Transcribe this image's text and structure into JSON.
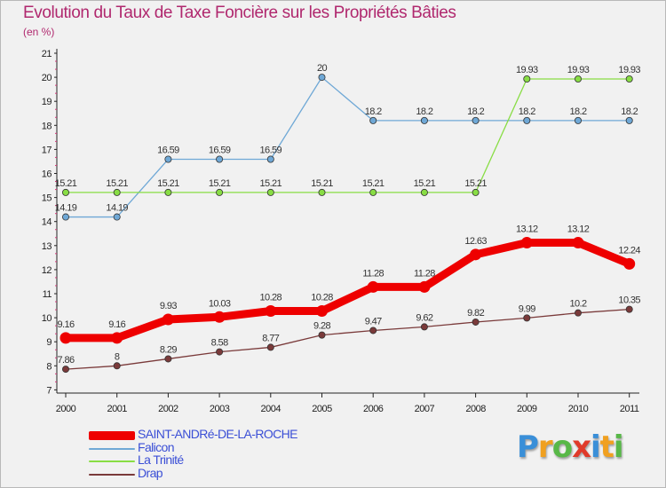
{
  "title": "Evolution du Taux de Taxe Foncière sur les Propriétés Bâties",
  "subtitle": "(en %)",
  "logo": {
    "text": "Proxiti",
    "letters": [
      {
        "ch": "P",
        "color": "#3a8fd8"
      },
      {
        "ch": "r",
        "color": "#f0a020"
      },
      {
        "ch": "o",
        "color": "#58b848"
      },
      {
        "ch": "x",
        "color": "#e03a2a"
      },
      {
        "ch": "i",
        "color": "#3a8fd8"
      },
      {
        "ch": "t",
        "color": "#f0a020"
      },
      {
        "ch": "i",
        "color": "#58b848"
      }
    ]
  },
  "chart_data": {
    "type": "line",
    "title": "Evolution du Taux de Taxe Foncière sur les Propriétés Bâties",
    "ylabel": "(en %)",
    "xlabel": "",
    "x": [
      "2000",
      "2001",
      "2002",
      "2003",
      "2004",
      "2005",
      "2006",
      "2007",
      "2008",
      "2009",
      "2010",
      "2011"
    ],
    "ylim": [
      7,
      21
    ],
    "yticks": [
      7,
      8,
      9,
      10,
      11,
      12,
      13,
      14,
      15,
      16,
      17,
      18,
      19,
      20,
      21
    ],
    "grid": false,
    "legend_position": "bottom-left",
    "series": [
      {
        "name": "SAINT-ANDRé-DE-LA-ROCHE",
        "color": "#ee0000",
        "width": "thick",
        "values": [
          9.16,
          9.16,
          9.93,
          10.03,
          10.28,
          10.28,
          11.28,
          11.28,
          12.63,
          13.12,
          13.12,
          12.24
        ],
        "labels": [
          "9.16",
          "9.16",
          "9.93",
          "10.03",
          "10.28",
          "10.28",
          "11.28",
          "11.28",
          "12.63",
          "13.12",
          "13.12",
          "12.24"
        ]
      },
      {
        "name": "Falicon",
        "color": "#6fa8d6",
        "width": "thin",
        "values": [
          14.19,
          14.19,
          16.59,
          16.59,
          16.59,
          20,
          18.2,
          18.2,
          18.2,
          18.2,
          18.2,
          18.2
        ],
        "labels": [
          "14.19",
          "14.19",
          "16.59",
          "16.59",
          "16.59",
          "20",
          "18.2",
          "18.2",
          "18.2",
          "18.2",
          "18.2",
          "18.2"
        ]
      },
      {
        "name": "La Trinité",
        "color": "#88dd44",
        "width": "thin",
        "values": [
          15.21,
          15.21,
          15.21,
          15.21,
          15.21,
          15.21,
          15.21,
          15.21,
          15.21,
          19.93,
          19.93,
          19.93
        ],
        "labels": [
          "15.21",
          "15.21",
          "15.21",
          "15.21",
          "15.21",
          "15.21",
          "15.21",
          "15.21",
          "15.21",
          "19.93",
          "19.93",
          "19.93"
        ]
      },
      {
        "name": "Drap",
        "color": "#7a3a3a",
        "width": "thin",
        "values": [
          7.86,
          8,
          8.29,
          8.58,
          8.77,
          9.28,
          9.47,
          9.62,
          9.82,
          9.99,
          10.2,
          10.35
        ],
        "labels": [
          "7.86",
          "8",
          "8.29",
          "8.58",
          "8.77",
          "9.28",
          "9.47",
          "9.62",
          "9.82",
          "9.99",
          "10.2",
          "10.35"
        ]
      }
    ]
  }
}
